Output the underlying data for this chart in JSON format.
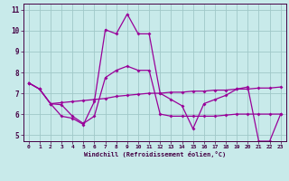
{
  "xlabel": "Windchill (Refroidissement éolien,°C)",
  "background_color": "#c8eaea",
  "grid_color": "#a0c8c8",
  "line_color": "#990099",
  "xlim": [
    -0.5,
    23.5
  ],
  "ylim": [
    4.7,
    11.3
  ],
  "xticks": [
    0,
    1,
    2,
    3,
    4,
    5,
    6,
    7,
    8,
    9,
    10,
    11,
    12,
    13,
    14,
    15,
    16,
    17,
    18,
    19,
    20,
    21,
    22,
    23
  ],
  "yticks": [
    5,
    6,
    7,
    8,
    9,
    10,
    11
  ],
  "line1_x": [
    0,
    1,
    2,
    3,
    4,
    5,
    6,
    7,
    8,
    9,
    10,
    11,
    12,
    13,
    14,
    15,
    16,
    17,
    18,
    19,
    20,
    21,
    22,
    23
  ],
  "line1_y": [
    7.5,
    7.2,
    6.5,
    5.9,
    5.8,
    5.5,
    6.6,
    10.05,
    9.85,
    10.8,
    9.85,
    9.85,
    7.0,
    6.7,
    6.4,
    5.3,
    6.5,
    6.7,
    6.9,
    7.2,
    7.3,
    4.7,
    4.7,
    6.0
  ],
  "line2_x": [
    0,
    1,
    2,
    3,
    4,
    5,
    6,
    7,
    8,
    9,
    10,
    11,
    12,
    13,
    14,
    15,
    16,
    17,
    18,
    19,
    20,
    21,
    22,
    23
  ],
  "line2_y": [
    7.5,
    7.2,
    6.5,
    6.55,
    6.6,
    6.65,
    6.7,
    6.75,
    6.85,
    6.9,
    6.95,
    7.0,
    7.0,
    7.05,
    7.05,
    7.1,
    7.1,
    7.15,
    7.15,
    7.2,
    7.2,
    7.25,
    7.25,
    7.3
  ],
  "line3_x": [
    0,
    1,
    2,
    3,
    4,
    5,
    6,
    7,
    8,
    9,
    10,
    11,
    12,
    13,
    14,
    15,
    16,
    17,
    18,
    19,
    20,
    21,
    22,
    23
  ],
  "line3_y": [
    7.5,
    7.2,
    6.5,
    6.45,
    5.9,
    5.55,
    5.9,
    7.75,
    8.1,
    8.3,
    8.1,
    8.1,
    6.0,
    5.9,
    5.9,
    5.9,
    5.9,
    5.9,
    5.95,
    6.0,
    6.0,
    6.0,
    6.0,
    6.0
  ]
}
